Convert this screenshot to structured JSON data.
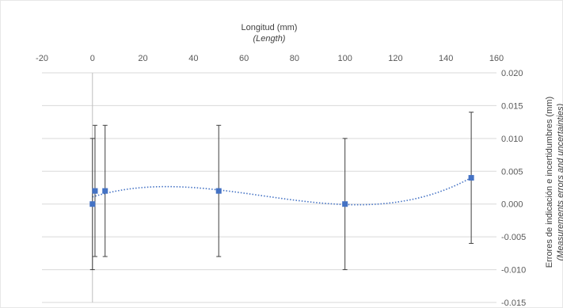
{
  "chart_data": {
    "type": "scatter",
    "xlabel": "Longitud (mm)",
    "xlabel_sub": "(Length)",
    "ylabel": "Errores de indicación e incertidumbres (mm)",
    "ylabel_sub": "(Measurements errors and uncertainties)",
    "xlim": [
      -20,
      160
    ],
    "ylim": [
      -0.015,
      0.02
    ],
    "x_axis_position": "top",
    "y_axis_position": "right",
    "grid": "horizontal",
    "x_ticks": [
      -20,
      0,
      20,
      40,
      60,
      80,
      100,
      120,
      140,
      160
    ],
    "x_tick_labels": [
      "-20",
      "0",
      "20",
      "40",
      "60",
      "80",
      "100",
      "120",
      "140",
      "160"
    ],
    "y_ticks": [
      -0.015,
      -0.01,
      -0.005,
      0,
      0.005,
      0.01,
      0.015,
      0.02
    ],
    "y_tick_labels": [
      "-0.015",
      "-0.010",
      "-0.005",
      "0.000",
      "0.005",
      "0.010",
      "0.015",
      "0.020"
    ],
    "points": [
      {
        "x": 0,
        "y": 0.0,
        "err": 0.01
      },
      {
        "x": 1,
        "y": 0.002,
        "err": 0.01
      },
      {
        "x": 5,
        "y": 0.002,
        "err": 0.01
      },
      {
        "x": 50,
        "y": 0.002,
        "err": 0.01
      },
      {
        "x": 100,
        "y": 0.0,
        "err": 0.01
      },
      {
        "x": 150,
        "y": 0.004,
        "err": 0.01
      }
    ],
    "trendline": {
      "style": "dotted",
      "kind": "polynomial"
    },
    "colors": {
      "marker": "#4472c4",
      "trendline": "#4472c4",
      "errorbar": "#404040",
      "grid": "#d9d9d9",
      "axis": "#bfbfbf"
    }
  }
}
